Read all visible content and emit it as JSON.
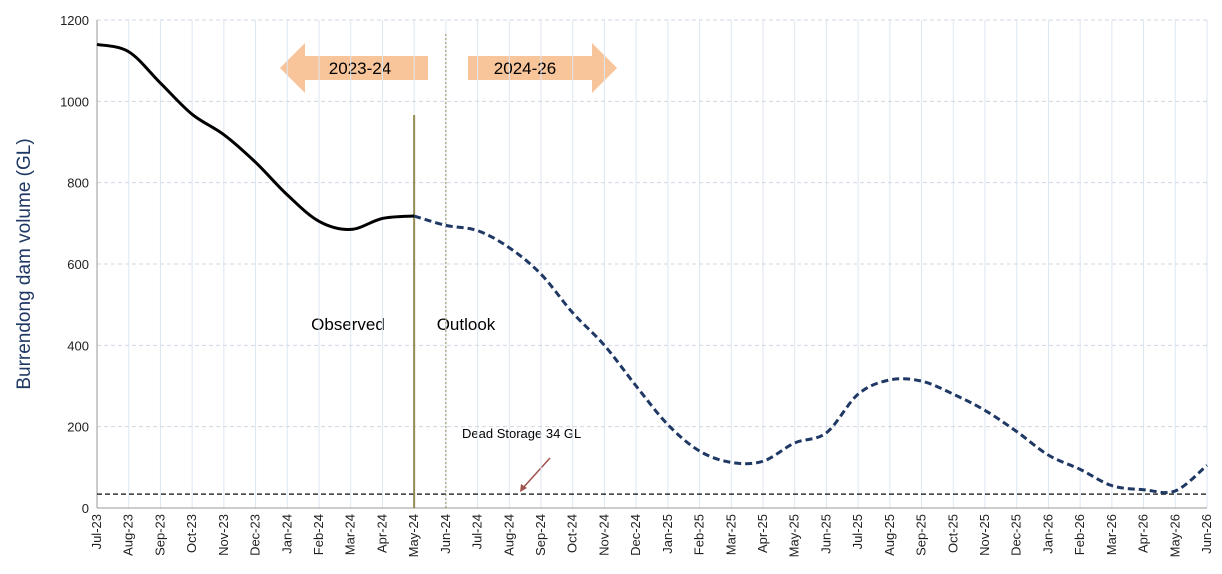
{
  "chart_data": {
    "type": "line",
    "y_label": "Burrendong dam volume (GL)",
    "categories": [
      "Jul-23",
      "Aug-23",
      "Sep-23",
      "Oct-23",
      "Nov-23",
      "Dec-23",
      "Jan-24",
      "Feb-24",
      "Mar-24",
      "Apr-24",
      "May-24",
      "Jun-24",
      "Jul-24",
      "Aug-24",
      "Sep-24",
      "Oct-24",
      "Nov-24",
      "Dec-24",
      "Jan-25",
      "Feb-25",
      "Mar-25",
      "Apr-25",
      "May-25",
      "Jun-25",
      "Jul-25",
      "Aug-25",
      "Sep-25",
      "Oct-25",
      "Nov-25",
      "Dec-25",
      "Jan-26",
      "Feb-26",
      "Mar-26",
      "Apr-26",
      "May-26",
      "Jun-26"
    ],
    "series": [
      {
        "name": "Observed",
        "color": "#000000",
        "dashed": false,
        "values": [
          1140,
          1122,
          1045,
          968,
          918,
          850,
          770,
          705,
          685,
          712,
          718,
          null,
          null,
          null,
          null,
          null,
          null,
          null,
          null,
          null,
          null,
          null,
          null,
          null,
          null,
          null,
          null,
          null,
          null,
          null,
          null,
          null,
          null,
          null,
          null,
          null
        ]
      },
      {
        "name": "Outlook",
        "color": "#1f3864",
        "dashed": true,
        "values": [
          null,
          null,
          null,
          null,
          null,
          null,
          null,
          null,
          null,
          null,
          718,
          695,
          682,
          640,
          575,
          480,
          400,
          300,
          205,
          140,
          112,
          115,
          160,
          185,
          280,
          315,
          312,
          280,
          240,
          188,
          130,
          95,
          55,
          45,
          42,
          105
        ]
      }
    ],
    "ylim": [
      0,
      1200
    ],
    "yticks": [
      0,
      200,
      400,
      600,
      800,
      1000,
      1200
    ],
    "grid": true,
    "reference_line": {
      "value": 34,
      "label": "Dead Storage 34 GL"
    },
    "periods": [
      "2023-24",
      "2024-26"
    ]
  }
}
